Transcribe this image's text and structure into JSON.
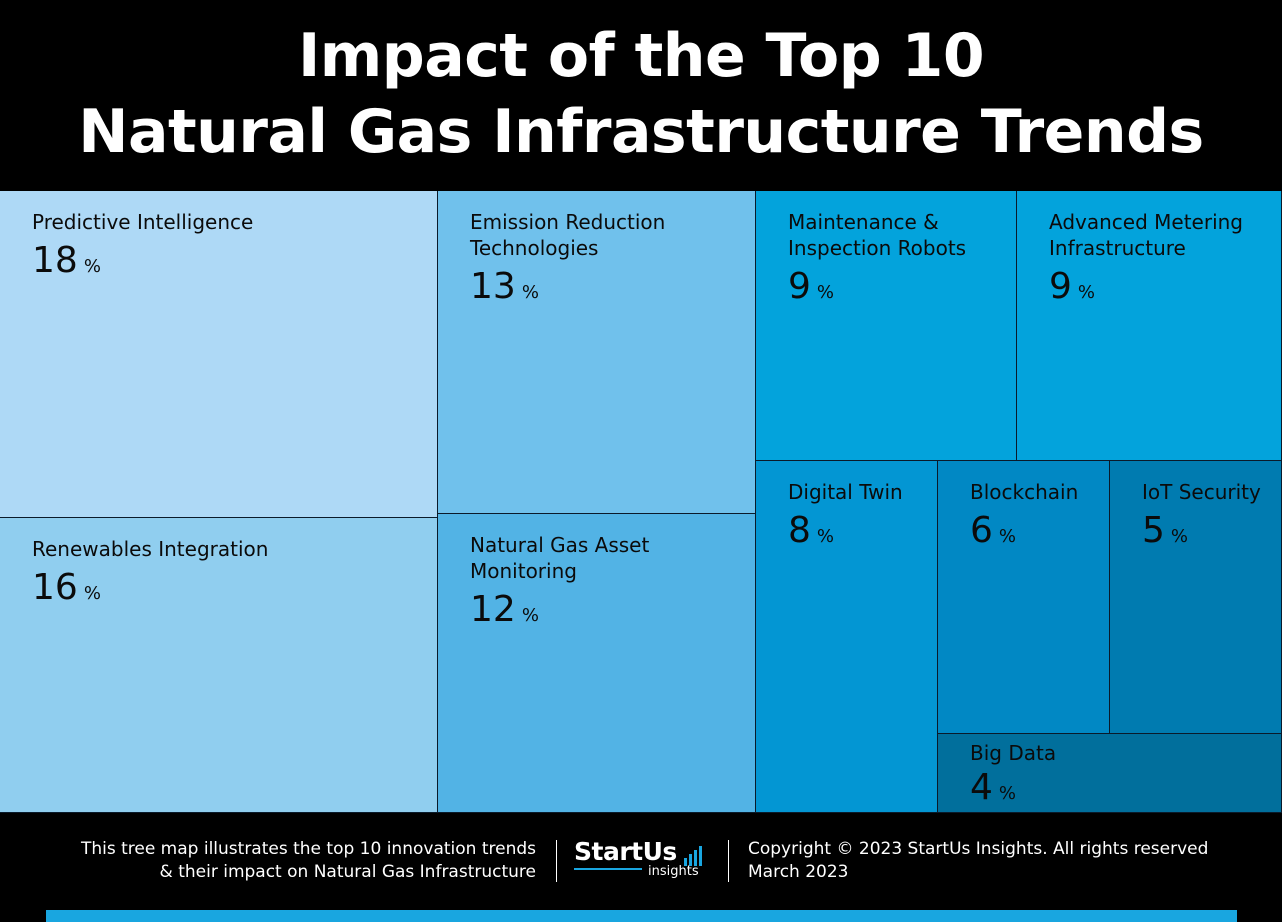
{
  "header": {
    "title_line1": "Impact of the Top 10",
    "title_line2": "Natural Gas Infrastructure Trends"
  },
  "chart_data": {
    "type": "treemap",
    "unit": "%",
    "items": [
      {
        "label": "Predictive Intelligence",
        "value": 18,
        "color": "#aed9f6"
      },
      {
        "label": "Renewables Integration",
        "value": 16,
        "color": "#90ceef"
      },
      {
        "label": "Emission Reduction\nTechnologies",
        "value": 13,
        "color": "#70c1ec"
      },
      {
        "label": "Natural Gas Asset\nMonitoring",
        "value": 12,
        "color": "#52b3e5"
      },
      {
        "label": "Maintenance &\nInspection Robots",
        "value": 9,
        "color": "#03a3dc"
      },
      {
        "label": "Advanced Metering\nInfrastructure",
        "value": 9,
        "color": "#03a3dc"
      },
      {
        "label": "Digital Twin",
        "value": 8,
        "color": "#0396d3"
      },
      {
        "label": "Blockchain",
        "value": 6,
        "color": "#0188c4"
      },
      {
        "label": "IoT Security",
        "value": 5,
        "color": "#007bb0"
      },
      {
        "label": "Big Data",
        "value": 4,
        "color": "#016f9c"
      }
    ]
  },
  "footer": {
    "description_line1": "This tree map illustrates the top 10 innovation trends",
    "description_line2": "& their impact on Natural Gas Infrastructure",
    "logo_main": "StartUs",
    "logo_sub": "insights",
    "copyright": "Copyright © 2023 StartUs Insights. All rights reserved",
    "date": "March 2023",
    "accent_color": "#19a6e0"
  }
}
